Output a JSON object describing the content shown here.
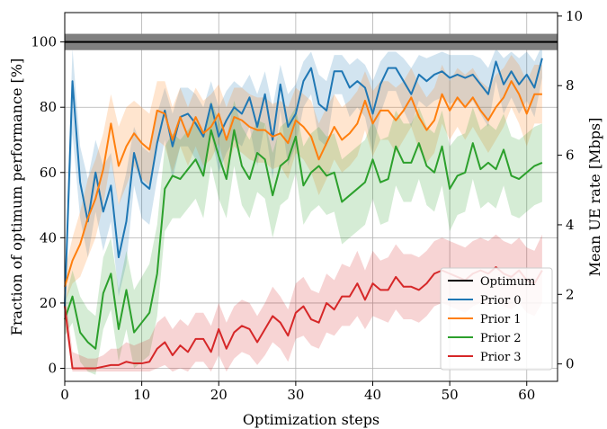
{
  "chart_data": {
    "type": "line",
    "xlabel": "Optimization steps",
    "ylabel": "Fraction of optimum performance [%]",
    "y2label": "Mean UE rate [Mbps]",
    "xlim": [
      0,
      64
    ],
    "ylim": [
      -4,
      109
    ],
    "y2lim": [
      -0.5,
      10.1
    ],
    "x_ticks": [
      0,
      10,
      20,
      30,
      40,
      50,
      60
    ],
    "y_ticks": [
      0,
      20,
      40,
      60,
      80,
      100
    ],
    "y2_ticks": [
      0,
      2,
      4,
      6,
      8,
      10
    ],
    "grid": true,
    "legend_position": "lower right",
    "optimum": {
      "name": "Optimum",
      "value": 100,
      "band": [
        97.5,
        102.5
      ],
      "color": "#000000",
      "band_color": "#808080"
    },
    "series": [
      {
        "name": "Prior 0",
        "color": "#1f77b4",
        "values": [
          19,
          88,
          57,
          45,
          60,
          48,
          56,
          34,
          45,
          66,
          57,
          55,
          69,
          79,
          68,
          77,
          78,
          75,
          71,
          81,
          71,
          76,
          80,
          78,
          83,
          74,
          84,
          70,
          87,
          74,
          78,
          88,
          92,
          81,
          79,
          91,
          91,
          86,
          88,
          86,
          78,
          87,
          92,
          92,
          88,
          84,
          90,
          88,
          90,
          91,
          89,
          90,
          89,
          90,
          87,
          84,
          94,
          87,
          91,
          87,
          90,
          86,
          95
        ],
        "band_upper": [
          24,
          98,
          68,
          58,
          70,
          62,
          66,
          50,
          60,
          74,
          68,
          66,
          78,
          86,
          78,
          86,
          86,
          84,
          80,
          88,
          80,
          85,
          88,
          86,
          90,
          84,
          91,
          80,
          93,
          84,
          87,
          94,
          97,
          90,
          88,
          96,
          96,
          93,
          95,
          93,
          88,
          94,
          97,
          97,
          95,
          92,
          96,
          95,
          96,
          97,
          96,
          96,
          96,
          96,
          95,
          92,
          98,
          95,
          97,
          95,
          97,
          94,
          99
        ],
        "band_lower": [
          14,
          72,
          46,
          34,
          48,
          36,
          45,
          22,
          32,
          56,
          46,
          44,
          58,
          70,
          58,
          68,
          68,
          64,
          60,
          72,
          60,
          66,
          70,
          68,
          74,
          62,
          75,
          58,
          79,
          62,
          68,
          80,
          84,
          70,
          68,
          84,
          84,
          77,
          80,
          77,
          66,
          78,
          85,
          85,
          79,
          74,
          82,
          80,
          82,
          83,
          81,
          82,
          80,
          82,
          78,
          74,
          88,
          78,
          83,
          78,
          82,
          77,
          89
        ]
      },
      {
        "name": "Prior 1",
        "color": "#ff7f0e",
        "values": [
          25,
          33,
          38,
          46,
          52,
          61,
          75,
          62,
          68,
          72,
          69,
          67,
          79,
          78,
          70,
          77,
          71,
          77,
          72,
          74,
          78,
          70,
          77,
          76,
          74,
          73,
          73,
          71,
          72,
          69,
          76,
          74,
          71,
          64,
          69,
          74,
          70,
          72,
          75,
          82,
          75,
          79,
          79,
          76,
          79,
          83,
          77,
          73,
          76,
          84,
          79,
          83,
          80,
          83,
          79,
          76,
          80,
          83,
          88,
          84,
          78,
          84,
          84
        ],
        "band_upper": [
          30,
          40,
          48,
          58,
          64,
          72,
          84,
          74,
          80,
          82,
          80,
          78,
          88,
          88,
          80,
          86,
          80,
          86,
          82,
          84,
          87,
          80,
          86,
          86,
          84,
          83,
          83,
          81,
          82,
          80,
          86,
          84,
          82,
          75,
          80,
          84,
          80,
          82,
          85,
          91,
          85,
          88,
          88,
          86,
          88,
          92,
          87,
          83,
          86,
          93,
          88,
          92,
          90,
          92,
          88,
          86,
          90,
          92,
          96,
          93,
          88,
          93,
          93
        ],
        "band_lower": [
          20,
          26,
          28,
          34,
          40,
          50,
          64,
          50,
          56,
          62,
          58,
          56,
          70,
          68,
          60,
          68,
          62,
          68,
          62,
          64,
          69,
          60,
          68,
          66,
          64,
          63,
          63,
          61,
          62,
          58,
          66,
          64,
          60,
          53,
          58,
          64,
          60,
          62,
          65,
          73,
          65,
          70,
          70,
          66,
          70,
          74,
          67,
          63,
          66,
          75,
          70,
          74,
          70,
          74,
          70,
          66,
          70,
          74,
          80,
          75,
          68,
          75,
          75
        ]
      },
      {
        "name": "Prior 2",
        "color": "#2ca02c",
        "values": [
          15,
          22,
          11,
          8,
          6,
          23,
          29,
          12,
          24,
          11,
          14,
          17,
          29,
          55,
          59,
          58,
          61,
          64,
          59,
          73,
          65,
          58,
          73,
          62,
          58,
          66,
          64,
          53,
          62,
          64,
          71,
          56,
          60,
          62,
          59,
          60,
          51,
          53,
          55,
          57,
          64,
          57,
          58,
          68,
          63,
          63,
          69,
          62,
          60,
          68,
          55,
          59,
          60,
          69,
          61,
          63,
          61,
          67,
          59,
          58,
          60,
          62,
          63
        ],
        "band_upper": [
          20,
          30,
          22,
          18,
          16,
          34,
          40,
          24,
          36,
          24,
          28,
          32,
          44,
          68,
          72,
          70,
          73,
          76,
          72,
          82,
          76,
          70,
          82,
          74,
          70,
          76,
          75,
          66,
          74,
          76,
          80,
          68,
          72,
          74,
          71,
          72,
          64,
          66,
          68,
          70,
          76,
          70,
          71,
          79,
          75,
          75,
          80,
          74,
          72,
          79,
          68,
          71,
          72,
          80,
          73,
          75,
          73,
          78,
          71,
          70,
          72,
          74,
          75
        ],
        "band_lower": [
          10,
          14,
          2,
          -1,
          -2,
          12,
          18,
          2,
          12,
          0,
          2,
          4,
          16,
          42,
          46,
          46,
          49,
          52,
          46,
          62,
          52,
          46,
          62,
          50,
          46,
          54,
          52,
          40,
          50,
          52,
          60,
          44,
          48,
          50,
          47,
          48,
          38,
          40,
          42,
          44,
          52,
          44,
          45,
          56,
          51,
          51,
          58,
          50,
          48,
          56,
          42,
          47,
          48,
          58,
          49,
          51,
          49,
          56,
          47,
          46,
          48,
          50,
          51
        ]
      },
      {
        "name": "Prior 3",
        "color": "#d62728",
        "values": [
          19,
          0,
          0,
          0,
          0,
          0.5,
          1,
          1,
          2,
          1.5,
          1.5,
          2,
          6,
          8,
          4,
          7,
          5,
          9,
          9,
          5,
          12,
          6,
          11,
          13,
          12,
          8,
          12,
          16,
          14,
          10,
          17,
          19,
          15,
          14,
          20,
          18,
          22,
          22,
          26,
          21,
          26,
          24,
          24,
          28,
          25,
          25,
          24,
          26,
          29,
          30,
          29,
          28,
          27,
          29,
          30,
          29,
          31,
          29,
          28,
          30,
          27,
          26,
          30
        ],
        "band_upper": [
          24,
          5,
          4,
          3,
          3,
          4,
          6,
          6,
          8,
          7,
          8,
          9,
          14,
          16,
          12,
          15,
          13,
          17,
          17,
          13,
          20,
          14,
          19,
          21,
          20,
          16,
          20,
          25,
          22,
          18,
          26,
          28,
          24,
          23,
          29,
          27,
          32,
          31,
          36,
          30,
          36,
          33,
          34,
          38,
          35,
          35,
          34,
          36,
          39,
          40,
          39,
          38,
          37,
          39,
          40,
          39,
          41,
          39,
          38,
          40,
          37,
          36,
          41
        ],
        "band_lower": [
          14,
          -1,
          -1,
          -1,
          -1,
          -1,
          -1,
          -1,
          -1,
          -1,
          -1,
          -1,
          0,
          1,
          -1,
          0,
          -1,
          2,
          2,
          -1,
          4,
          -1,
          3,
          5,
          4,
          1,
          4,
          8,
          6,
          2,
          9,
          10,
          7,
          6,
          11,
          10,
          13,
          13,
          16,
          12,
          16,
          15,
          14,
          18,
          15,
          15,
          14,
          16,
          19,
          20,
          19,
          18,
          17,
          19,
          20,
          19,
          21,
          19,
          18,
          20,
          17,
          16,
          20
        ]
      }
    ]
  }
}
